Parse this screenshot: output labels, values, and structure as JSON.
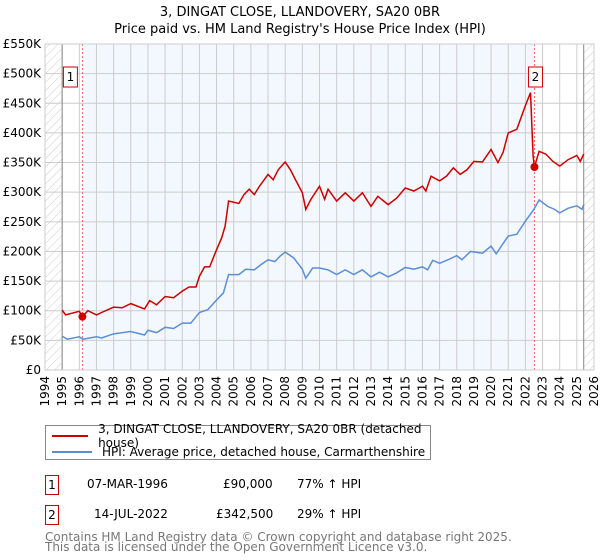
{
  "chart_data": {
    "type": "line",
    "title": "3, DINGAT CLOSE, LLANDOVERY, SA20 0BR",
    "subtitle": "Price paid vs. HM Land Registry's House Price Index (HPI)",
    "xlim": [
      1994,
      2026
    ],
    "ylim": [
      0,
      550000
    ],
    "x_ticks": [
      "1994",
      "1995",
      "1996",
      "1997",
      "1998",
      "1999",
      "2000",
      "2001",
      "2002",
      "2003",
      "2004",
      "2005",
      "2006",
      "2007",
      "2008",
      "2009",
      "2010",
      "2011",
      "2012",
      "2013",
      "2014",
      "2015",
      "2016",
      "2017",
      "2018",
      "2019",
      "2020",
      "2021",
      "2022",
      "2023",
      "2024",
      "2025",
      "2026"
    ],
    "y_ticks": [
      {
        "v": 0,
        "l": "£0"
      },
      {
        "v": 50000,
        "l": "£50K"
      },
      {
        "v": 100000,
        "l": "£100K"
      },
      {
        "v": 150000,
        "l": "£150K"
      },
      {
        "v": 200000,
        "l": "£200K"
      },
      {
        "v": 250000,
        "l": "£250K"
      },
      {
        "v": 300000,
        "l": "£300K"
      },
      {
        "v": 350000,
        "l": "£350K"
      },
      {
        "v": 400000,
        "l": "£400K"
      },
      {
        "v": 450000,
        "l": "£450K"
      },
      {
        "v": 500000,
        "l": "£500K"
      },
      {
        "v": 550000,
        "l": "£550K"
      }
    ],
    "grid": true,
    "data_range": [
      1995,
      2025.4
    ],
    "shaded_range": [
      1996.18,
      2022.53
    ],
    "series": [
      {
        "name": "3, DINGAT CLOSE, LLANDOVERY, SA20 0BR (detached house)",
        "color": "#cc0000",
        "points": [
          [
            1995,
            101
          ],
          [
            1995.2,
            93
          ],
          [
            1996,
            99
          ],
          [
            1996.18,
            90
          ],
          [
            1996.5,
            100
          ],
          [
            1997,
            93
          ],
          [
            1997.3,
            97
          ],
          [
            1998,
            106
          ],
          [
            1998.5,
            105
          ],
          [
            1999,
            112
          ],
          [
            1999.8,
            103
          ],
          [
            2000.1,
            117
          ],
          [
            2000.5,
            110
          ],
          [
            2001,
            124
          ],
          [
            2001.5,
            122
          ],
          [
            2002,
            133
          ],
          [
            2002.4,
            140
          ],
          [
            2002.8,
            140
          ],
          [
            2003,
            158
          ],
          [
            2003.3,
            174
          ],
          [
            2003.6,
            174
          ],
          [
            2004,
            203
          ],
          [
            2004.3,
            223
          ],
          [
            2004.5,
            243
          ],
          [
            2004.7,
            285
          ],
          [
            2005,
            283
          ],
          [
            2005.3,
            281
          ],
          [
            2005.6,
            296
          ],
          [
            2005.9,
            305
          ],
          [
            2006.2,
            296
          ],
          [
            2006.5,
            310
          ],
          [
            2007,
            330
          ],
          [
            2007.3,
            321
          ],
          [
            2007.6,
            338
          ],
          [
            2008,
            351
          ],
          [
            2008.3,
            338
          ],
          [
            2008.6,
            321
          ],
          [
            2009,
            299
          ],
          [
            2009.2,
            271
          ],
          [
            2009.5,
            288
          ],
          [
            2010,
            310
          ],
          [
            2010.3,
            288
          ],
          [
            2010.5,
            305
          ],
          [
            2011,
            285
          ],
          [
            2011.5,
            299
          ],
          [
            2012,
            285
          ],
          [
            2012.5,
            299
          ],
          [
            2013,
            276
          ],
          [
            2013.4,
            293
          ],
          [
            2014,
            279
          ],
          [
            2014.5,
            290
          ],
          [
            2015,
            307
          ],
          [
            2015.5,
            302
          ],
          [
            2016,
            310
          ],
          [
            2016.2,
            302
          ],
          [
            2016.5,
            327
          ],
          [
            2017,
            319
          ],
          [
            2017.4,
            327
          ],
          [
            2017.8,
            341
          ],
          [
            2018.2,
            330
          ],
          [
            2018.6,
            338
          ],
          [
            2019,
            352
          ],
          [
            2019.5,
            351
          ],
          [
            2020,
            372
          ],
          [
            2020.4,
            350
          ],
          [
            2020.7,
            367
          ],
          [
            2021,
            400
          ],
          [
            2021.5,
            406
          ],
          [
            2022,
            446
          ],
          [
            2022.3,
            468
          ],
          [
            2022.45,
            361
          ],
          [
            2022.53,
            342.5
          ],
          [
            2022.8,
            369
          ],
          [
            2023.2,
            364
          ],
          [
            2023.6,
            352
          ],
          [
            2024,
            344
          ],
          [
            2024.5,
            355
          ],
          [
            2025,
            362
          ],
          [
            2025.2,
            352
          ],
          [
            2025.4,
            364
          ]
        ]
      },
      {
        "name": "HPI: Average price, detached house, Carmarthenshire",
        "color": "#5b8fd4",
        "points": [
          [
            1995,
            57
          ],
          [
            1995.3,
            52
          ],
          [
            1996,
            56
          ],
          [
            1996.2,
            52
          ],
          [
            1997,
            56
          ],
          [
            1997.3,
            54
          ],
          [
            1998,
            61
          ],
          [
            1999,
            65
          ],
          [
            1999.8,
            59
          ],
          [
            2000,
            67
          ],
          [
            2000.5,
            63
          ],
          [
            2001,
            72
          ],
          [
            2001.5,
            70
          ],
          [
            2002,
            79
          ],
          [
            2002.5,
            79
          ],
          [
            2003,
            97
          ],
          [
            2003.5,
            102
          ],
          [
            2004,
            118
          ],
          [
            2004.4,
            130
          ],
          [
            2004.7,
            161
          ],
          [
            2005.3,
            161
          ],
          [
            2005.7,
            170
          ],
          [
            2006.2,
            169
          ],
          [
            2006.6,
            178
          ],
          [
            2007,
            186
          ],
          [
            2007.4,
            183
          ],
          [
            2007.7,
            192
          ],
          [
            2008,
            199
          ],
          [
            2008.5,
            189
          ],
          [
            2009,
            170
          ],
          [
            2009.2,
            155
          ],
          [
            2009.6,
            172
          ],
          [
            2010,
            172
          ],
          [
            2010.5,
            169
          ],
          [
            2011,
            161
          ],
          [
            2011.5,
            169
          ],
          [
            2012,
            161
          ],
          [
            2012.5,
            169
          ],
          [
            2013,
            157
          ],
          [
            2013.5,
            165
          ],
          [
            2014,
            157
          ],
          [
            2014.5,
            164
          ],
          [
            2015,
            173
          ],
          [
            2015.5,
            170
          ],
          [
            2016,
            174
          ],
          [
            2016.3,
            169
          ],
          [
            2016.6,
            185
          ],
          [
            2017,
            180
          ],
          [
            2017.5,
            186
          ],
          [
            2018,
            193
          ],
          [
            2018.3,
            186
          ],
          [
            2018.8,
            200
          ],
          [
            2019.5,
            197
          ],
          [
            2020,
            209
          ],
          [
            2020.3,
            196
          ],
          [
            2020.6,
            209
          ],
          [
            2021,
            226
          ],
          [
            2021.5,
            229
          ],
          [
            2022,
            251
          ],
          [
            2022.5,
            271
          ],
          [
            2022.8,
            287
          ],
          [
            2023.3,
            276
          ],
          [
            2023.7,
            271
          ],
          [
            2024,
            265
          ],
          [
            2024.5,
            273
          ],
          [
            2025,
            277
          ],
          [
            2025.3,
            271
          ],
          [
            2025.4,
            279
          ]
        ]
      }
    ],
    "y_point_unit": "thousands GBP",
    "sales": [
      {
        "label": "1",
        "date": "07-MAR-1996",
        "x": 1996.18,
        "price": "£90,000",
        "value": 90,
        "hpi": "77% ↑ HPI"
      },
      {
        "label": "2",
        "date": "14-JUL-2022",
        "x": 2022.53,
        "price": "£342,500",
        "value": 342.5,
        "hpi": "29% ↑ HPI"
      }
    ]
  },
  "footer": {
    "line1": "Contains HM Land Registry data © Crown copyright and database right 2025.",
    "line2": "This data is licensed under the Open Government Licence v3.0."
  }
}
